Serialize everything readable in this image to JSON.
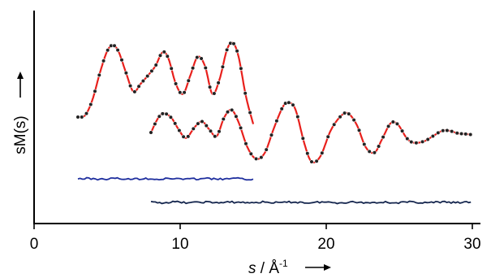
{
  "chart_data": {
    "type": "line",
    "xlabel_var": "s",
    "xlabel_unit": " / Å",
    "xlabel_exp": "-1",
    "ylabel": "sM(s)",
    "xlim": [
      0,
      31
    ],
    "xticks": [
      0,
      10,
      20,
      30
    ],
    "x_tick_labels": [
      "0",
      "10",
      "20",
      "30"
    ],
    "y_scale": "arbitrary units, no tick labels",
    "grid": false,
    "series": [
      {
        "role": "upper-curve",
        "color": "#e8201c",
        "marker_color": "#222222",
        "x_range": [
          3,
          15
        ],
        "points": [
          [
            3.0,
            0.0
          ],
          [
            3.5,
            0.04
          ],
          [
            4.0,
            0.38
          ],
          [
            4.5,
            0.95
          ],
          [
            5.0,
            1.42
          ],
          [
            5.4,
            1.55
          ],
          [
            5.8,
            1.4
          ],
          [
            6.3,
            0.95
          ],
          [
            6.8,
            0.55
          ],
          [
            7.3,
            0.72
          ],
          [
            7.8,
            0.9
          ],
          [
            8.3,
            1.1
          ],
          [
            8.8,
            1.4
          ],
          [
            9.2,
            1.26
          ],
          [
            9.7,
            0.72
          ],
          [
            10.2,
            0.5
          ],
          [
            10.7,
            0.9
          ],
          [
            11.2,
            1.3
          ],
          [
            11.7,
            1.1
          ],
          [
            12.2,
            0.5
          ],
          [
            12.7,
            0.82
          ],
          [
            13.2,
            1.45
          ],
          [
            13.6,
            1.6
          ],
          [
            14.0,
            1.3
          ],
          [
            14.5,
            0.45
          ],
          [
            15.0,
            -0.15
          ]
        ]
      },
      {
        "role": "lower-curve",
        "color": "#e8201c",
        "marker_color": "#222222",
        "x_range": [
          8,
          30
        ],
        "points": [
          [
            8.0,
            0.0
          ],
          [
            8.5,
            0.4
          ],
          [
            8.9,
            0.52
          ],
          [
            9.4,
            0.4
          ],
          [
            9.9,
            0.08
          ],
          [
            10.4,
            -0.15
          ],
          [
            11.0,
            0.15
          ],
          [
            11.5,
            0.3
          ],
          [
            12.0,
            0.08
          ],
          [
            12.5,
            -0.1
          ],
          [
            13.0,
            0.4
          ],
          [
            13.5,
            0.62
          ],
          [
            14.0,
            0.28
          ],
          [
            14.6,
            -0.4
          ],
          [
            15.2,
            -0.72
          ],
          [
            15.8,
            -0.55
          ],
          [
            16.4,
            0.1
          ],
          [
            17.0,
            0.68
          ],
          [
            17.4,
            0.82
          ],
          [
            17.9,
            0.62
          ],
          [
            18.5,
            -0.3
          ],
          [
            19.0,
            -0.8
          ],
          [
            19.6,
            -0.65
          ],
          [
            20.3,
            0.05
          ],
          [
            21.0,
            0.45
          ],
          [
            21.5,
            0.52
          ],
          [
            22.1,
            0.2
          ],
          [
            22.7,
            -0.4
          ],
          [
            23.3,
            -0.55
          ],
          [
            23.8,
            -0.2
          ],
          [
            24.4,
            0.25
          ],
          [
            24.9,
            0.22
          ],
          [
            25.5,
            -0.15
          ],
          [
            26.0,
            -0.28
          ],
          [
            26.7,
            -0.24
          ],
          [
            27.3,
            -0.1
          ],
          [
            27.9,
            0.04
          ],
          [
            28.4,
            0.05
          ],
          [
            29.0,
            -0.02
          ],
          [
            29.5,
            -0.04
          ],
          [
            30.0,
            -0.06
          ]
        ]
      },
      {
        "role": "upper-difference",
        "color": "#1f2f9e",
        "x_range": [
          3,
          15
        ]
      },
      {
        "role": "lower-difference",
        "color": "#15264e",
        "x_range": [
          8,
          30
        ]
      }
    ]
  }
}
